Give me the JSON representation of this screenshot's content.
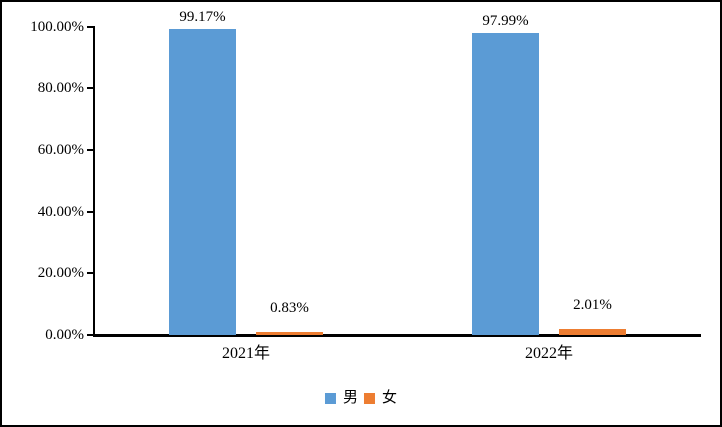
{
  "chart_data": {
    "type": "bar",
    "title": "",
    "xlabel": "",
    "ylabel": "",
    "categories": [
      "2021年",
      "2022年"
    ],
    "series": [
      {
        "name": "男",
        "color": "#5B9BD5",
        "values": [
          99.17,
          97.99
        ],
        "labels": [
          "99.17%",
          "97.99%"
        ]
      },
      {
        "name": "女",
        "color": "#ED7D31",
        "values": [
          0.83,
          2.01
        ],
        "labels": [
          "0.83%",
          "2.01%"
        ]
      }
    ],
    "ylim": [
      0,
      100
    ],
    "yticks": [
      {
        "value": 100,
        "label": "100.00%"
      },
      {
        "value": 80,
        "label": "80.00%"
      },
      {
        "value": 60,
        "label": "60.00%"
      },
      {
        "value": 40,
        "label": "40.00%"
      },
      {
        "value": 20,
        "label": "20.00%"
      },
      {
        "value": 0,
        "label": "0.00%"
      }
    ],
    "grid": false,
    "legend_position": "bottom",
    "axis_color": "#000000",
    "text_color": "#000000",
    "background_color": "#FFFFFF",
    "border_color": "#000000"
  }
}
